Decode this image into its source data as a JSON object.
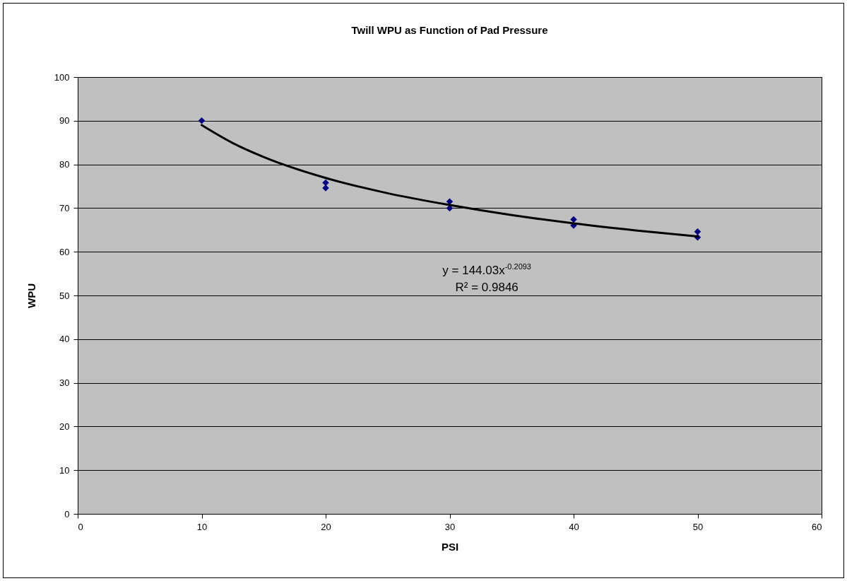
{
  "chart_data": {
    "type": "scatter",
    "title": "Twill WPU as Function of Pad Pressure",
    "xlabel": "PSI",
    "ylabel": "WPU",
    "xlim": [
      0,
      60
    ],
    "xticks": [
      0,
      10,
      20,
      30,
      40,
      50,
      60
    ],
    "ylim": [
      0,
      100
    ],
    "yticks": [
      0,
      10,
      20,
      30,
      40,
      50,
      60,
      70,
      80,
      90,
      100
    ],
    "grid": "y",
    "series": [
      {
        "marker": "diamond",
        "color": "#000080",
        "x": [
          10,
          20,
          20,
          30,
          30,
          40,
          40,
          50,
          50
        ],
        "values": [
          90,
          75.8,
          74.6,
          71.5,
          70,
          67.4,
          66,
          64.6,
          63.3
        ]
      },
      {
        "type": "line",
        "color": "#000000",
        "x": [
          10,
          12.5,
          15,
          20,
          25,
          30,
          35,
          40,
          45,
          50
        ],
        "values": [
          89,
          84.9,
          81.7,
          76.9,
          73.4,
          70.7,
          68.4,
          66.5,
          64.9,
          63.5
        ]
      }
    ],
    "annotations": [
      "y = 144.03x$^{-0.2093}$",
      "R² = 0.9846"
    ]
  }
}
